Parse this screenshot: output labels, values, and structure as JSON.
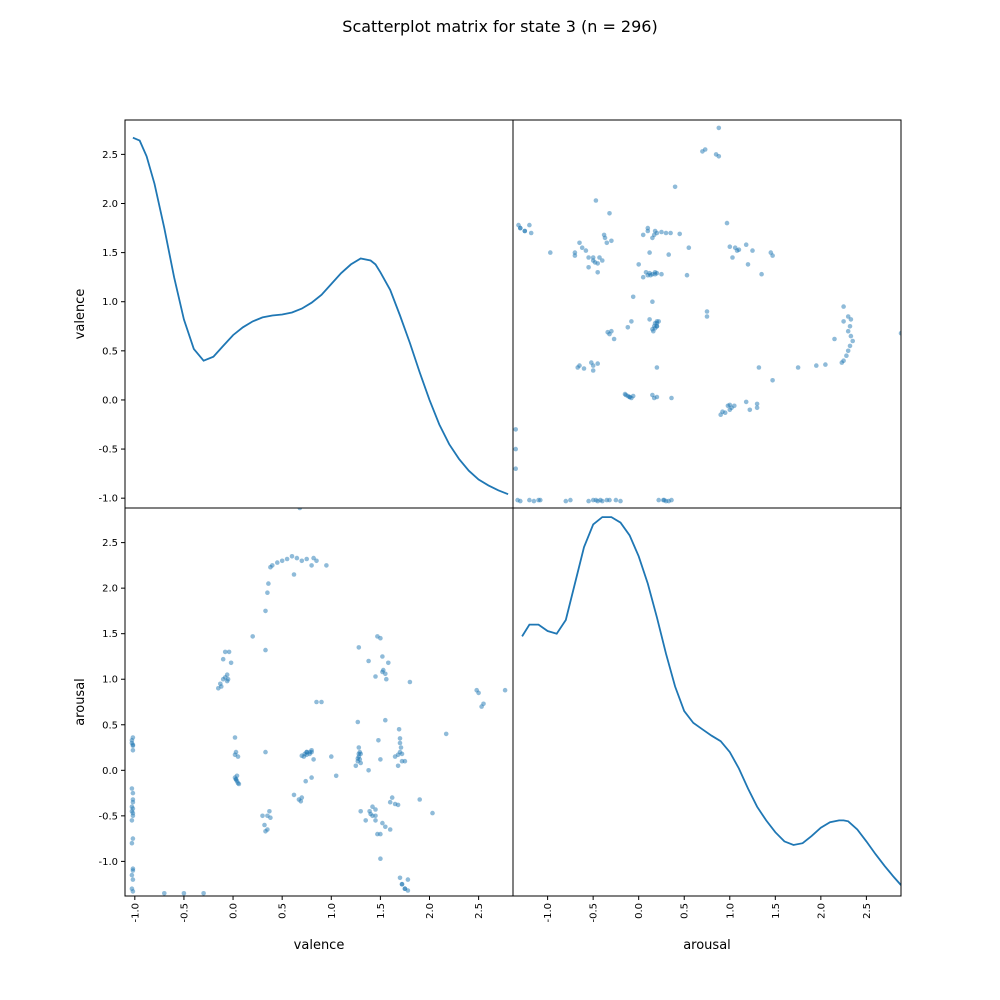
{
  "figure": {
    "title": "Scatterplot matrix for state 3 (n = 296)"
  },
  "chart_data": {
    "type": "scatter",
    "title": "Scatterplot matrix for state 3 (n = 296)",
    "variables": [
      "valence",
      "arousal"
    ],
    "color": "#1f77b4",
    "grid": false,
    "ranges": {
      "valence": [
        -1.1,
        2.85
      ],
      "arousal": [
        -1.38,
        2.88
      ]
    },
    "xlabels": [
      "valence",
      "arousal"
    ],
    "ylabels": [
      "valence",
      "arousal"
    ],
    "ticks": {
      "x": {
        "valence": [
          "-1.0",
          "-0.5",
          "0.0",
          "0.5",
          "1.0",
          "1.5",
          "2.0",
          "2.5"
        ],
        "arousal": [
          "-1.0",
          "-0.5",
          "0.0",
          "0.5",
          "1.0",
          "1.5",
          "2.0",
          "2.5"
        ]
      },
      "y": {
        "valence": [
          "-1.0",
          "-0.5",
          "0.0",
          "0.5",
          "1.0",
          "1.5",
          "2.0",
          "2.5"
        ],
        "arousal": [
          "-1.0",
          "-0.5",
          "0.0",
          "0.5",
          "1.0",
          "1.5",
          "2.0",
          "2.5"
        ]
      }
    },
    "density": {
      "valence": {
        "x": [
          -1.02,
          -0.95,
          -0.88,
          -0.8,
          -0.7,
          -0.6,
          -0.5,
          -0.4,
          -0.3,
          -0.2,
          -0.1,
          0.0,
          0.1,
          0.2,
          0.3,
          0.4,
          0.5,
          0.6,
          0.7,
          0.8,
          0.9,
          1.0,
          1.1,
          1.2,
          1.3,
          1.4,
          1.45,
          1.5,
          1.6,
          1.7,
          1.8,
          1.9,
          2.0,
          2.1,
          2.2,
          2.3,
          2.4,
          2.5,
          2.6,
          2.7,
          2.8
        ],
        "y": [
          2.67,
          2.64,
          2.48,
          2.2,
          1.75,
          1.25,
          0.82,
          0.52,
          0.4,
          0.44,
          0.55,
          0.66,
          0.74,
          0.8,
          0.84,
          0.86,
          0.87,
          0.89,
          0.93,
          0.99,
          1.07,
          1.18,
          1.29,
          1.38,
          1.44,
          1.42,
          1.38,
          1.3,
          1.12,
          0.86,
          0.58,
          0.28,
          0.0,
          -0.25,
          -0.45,
          -0.6,
          -0.72,
          -0.81,
          -0.87,
          -0.92,
          -0.96
        ]
      },
      "arousal": {
        "x": [
          -1.28,
          -1.2,
          -1.1,
          -1.0,
          -0.9,
          -0.8,
          -0.7,
          -0.6,
          -0.5,
          -0.4,
          -0.3,
          -0.2,
          -0.1,
          0.0,
          0.1,
          0.2,
          0.3,
          0.4,
          0.5,
          0.6,
          0.7,
          0.8,
          0.9,
          1.0,
          1.1,
          1.2,
          1.3,
          1.4,
          1.5,
          1.6,
          1.7,
          1.8,
          1.9,
          2.0,
          2.1,
          2.2,
          2.25,
          2.3,
          2.4,
          2.5,
          2.6,
          2.7,
          2.8,
          2.88
        ],
        "y": [
          1.47,
          1.6,
          1.6,
          1.53,
          1.5,
          1.65,
          2.05,
          2.45,
          2.7,
          2.78,
          2.78,
          2.72,
          2.58,
          2.35,
          2.05,
          1.68,
          1.28,
          0.92,
          0.65,
          0.52,
          0.45,
          0.38,
          0.32,
          0.2,
          0.02,
          -0.2,
          -0.4,
          -0.55,
          -0.68,
          -0.78,
          -0.82,
          -0.8,
          -0.72,
          -0.63,
          -0.57,
          -0.55,
          -0.55,
          -0.56,
          -0.65,
          -0.78,
          -0.92,
          -1.05,
          -1.17,
          -1.26
        ]
      }
    },
    "points": {
      "valence": [
        -1.02,
        -1.03,
        -1.02,
        -1.03,
        -1.02,
        -1.02,
        -1.03,
        -1.02,
        -1.03,
        -1.02,
        -1.02,
        -1.03,
        -1.02,
        -1.03,
        -1.02,
        -1.02,
        -1.03,
        -1.02,
        -1.02,
        -1.03,
        -1.02,
        -1.03,
        -1.02,
        -1.02,
        -0.7,
        -0.5,
        -0.3,
        -0.15,
        -0.13,
        -0.12,
        -0.1,
        -0.08,
        -0.06,
        -0.05,
        -0.1,
        -0.08,
        -0.04,
        -0.02,
        -0.06,
        0.02,
        0.03,
        0.04,
        0.06,
        0.03,
        0.05,
        0.02,
        0.04,
        0.03,
        0.05,
        0.02,
        0.2,
        0.33,
        0.3,
        0.32,
        0.35,
        0.33,
        0.37,
        0.33,
        0.35,
        0.36,
        0.38,
        0.4,
        0.45,
        0.5,
        0.55,
        0.6,
        0.65,
        0.62,
        0.7,
        0.75,
        0.8,
        0.85,
        0.82,
        0.95,
        0.62,
        0.67,
        0.7,
        0.74,
        0.69,
        0.8,
        0.75,
        0.8,
        0.78,
        0.85,
        0.9,
        1.0,
        1.05,
        1.25,
        1.27,
        1.28,
        1.3,
        1.29,
        1.27,
        1.28,
        1.3,
        1.29,
        1.28,
        1.27,
        1.38,
        1.39,
        1.4,
        1.42,
        1.45,
        1.47,
        1.5,
        1.52,
        1.53,
        1.55,
        1.56,
        1.45,
        1.47,
        1.5,
        1.52,
        1.55,
        1.58,
        1.28,
        1.3,
        1.45,
        1.5,
        1.6,
        1.65,
        1.68,
        1.7,
        1.72,
        1.75,
        1.78,
        1.68,
        1.7,
        1.71,
        1.72,
        1.69,
        1.7,
        1.72,
        1.75,
        1.78,
        1.8,
        1.9,
        2.03,
        2.17,
        2.48,
        2.5,
        2.53,
        2.55,
        2.77,
        0.68,
        0.72,
        0.75,
        0.78,
        0.82,
        0.75,
        0.8,
        0.73,
        0.7,
        0.33,
        0.35,
        0.38,
        1.35,
        1.38,
        1.42,
        1.45,
        1.48,
        1.5,
        1.52,
        1.55,
        1.6,
        1.62,
        1.65,
        1.68,
        1.7,
        1.72,
        1.75
      ],
      "arousal": [
        -1.33,
        -1.3,
        -1.2,
        -1.15,
        -1.1,
        -1.08,
        -0.8,
        -0.75,
        -0.55,
        -0.5,
        -0.47,
        -0.45,
        -0.42,
        -0.4,
        -0.35,
        -0.25,
        -0.2,
        0.22,
        0.27,
        0.3,
        0.28,
        0.33,
        0.36,
        -0.32,
        -1.35,
        -1.35,
        -1.35,
        0.9,
        0.95,
        0.92,
        1.0,
        1.02,
        1.05,
        1.0,
        1.22,
        1.3,
        1.3,
        1.18,
        0.98,
        -0.08,
        -0.1,
        -0.12,
        -0.15,
        0.2,
        0.15,
        0.36,
        -0.06,
        -0.1,
        -0.14,
        0.17,
        1.47,
        1.32,
        -0.5,
        -0.6,
        -0.65,
        -0.67,
        -0.45,
        1.75,
        1.95,
        2.05,
        2.23,
        2.25,
        2.28,
        2.3,
        2.32,
        2.35,
        2.33,
        2.15,
        2.3,
        2.32,
        2.25,
        2.3,
        2.33,
        2.25,
        -0.27,
        -0.32,
        -0.3,
        -0.12,
        -0.34,
        -0.08,
        0.17,
        0.2,
        0.2,
        0.75,
        0.75,
        0.15,
        -0.06,
        0.05,
        0.1,
        0.15,
        0.18,
        0.2,
        0.13,
        0.25,
        0.08,
        0.12,
        0.18,
        0.53,
        1.2,
        -0.45,
        -0.48,
        -0.5,
        -0.55,
        -0.7,
        -0.97,
        1.08,
        1.1,
        1.06,
        1.0,
        1.03,
        1.47,
        1.45,
        1.25,
        0.55,
        1.18,
        1.35,
        -0.45,
        -0.43,
        -0.7,
        -0.65,
        -0.37,
        -0.38,
        -1.18,
        -1.25,
        -1.3,
        -1.32,
        0.17,
        0.2,
        0.25,
        0.18,
        0.45,
        0.35,
        0.1,
        -1.3,
        -1.2,
        0.97,
        -0.32,
        -0.47,
        0.4,
        0.88,
        0.85,
        0.7,
        0.73,
        0.88,
        2.88,
        0.15,
        0.2,
        0.18,
        0.12,
        0.2,
        0.22,
        0.18,
        0.16,
        0.2,
        -0.5,
        -0.52,
        -0.55,
        -0.0,
        -0.4,
        -0.5,
        0.33,
        0.12,
        -0.58,
        -0.62,
        -0.35,
        -0.3,
        0.15,
        0.05,
        0.3,
        -1.25,
        0.1,
        0.08
      ]
    }
  }
}
